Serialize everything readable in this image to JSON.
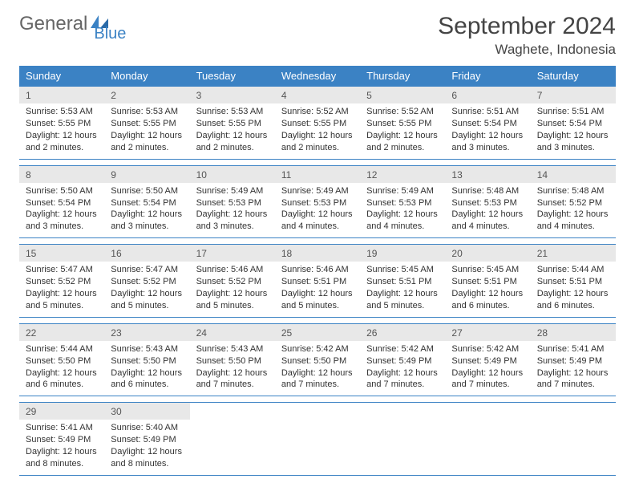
{
  "brand": {
    "general": "General",
    "blue": "Blue"
  },
  "title": "September 2024",
  "location": "Waghete, Indonesia",
  "colors": {
    "header_bg": "#3b82c4",
    "header_text": "#ffffff",
    "daynum_bg": "#e8e8e8",
    "rule": "#3b82c4",
    "brand_blue": "#3b82c4",
    "brand_grey": "#666666",
    "text": "#333333",
    "page_bg": "#ffffff"
  },
  "typography": {
    "title_fontsize": 30,
    "location_fontsize": 17,
    "dayheader_fontsize": 13,
    "daynum_fontsize": 12,
    "body_fontsize": 11
  },
  "day_headers": [
    "Sunday",
    "Monday",
    "Tuesday",
    "Wednesday",
    "Thursday",
    "Friday",
    "Saturday"
  ],
  "labels": {
    "sunrise": "Sunrise: ",
    "sunset": "Sunset: ",
    "daylight": "Daylight: "
  },
  "weeks": [
    [
      {
        "n": "1",
        "sunrise": "5:53 AM",
        "sunset": "5:55 PM",
        "daylight": "12 hours and 2 minutes."
      },
      {
        "n": "2",
        "sunrise": "5:53 AM",
        "sunset": "5:55 PM",
        "daylight": "12 hours and 2 minutes."
      },
      {
        "n": "3",
        "sunrise": "5:53 AM",
        "sunset": "5:55 PM",
        "daylight": "12 hours and 2 minutes."
      },
      {
        "n": "4",
        "sunrise": "5:52 AM",
        "sunset": "5:55 PM",
        "daylight": "12 hours and 2 minutes."
      },
      {
        "n": "5",
        "sunrise": "5:52 AM",
        "sunset": "5:55 PM",
        "daylight": "12 hours and 2 minutes."
      },
      {
        "n": "6",
        "sunrise": "5:51 AM",
        "sunset": "5:54 PM",
        "daylight": "12 hours and 3 minutes."
      },
      {
        "n": "7",
        "sunrise": "5:51 AM",
        "sunset": "5:54 PM",
        "daylight": "12 hours and 3 minutes."
      }
    ],
    [
      {
        "n": "8",
        "sunrise": "5:50 AM",
        "sunset": "5:54 PM",
        "daylight": "12 hours and 3 minutes."
      },
      {
        "n": "9",
        "sunrise": "5:50 AM",
        "sunset": "5:54 PM",
        "daylight": "12 hours and 3 minutes."
      },
      {
        "n": "10",
        "sunrise": "5:49 AM",
        "sunset": "5:53 PM",
        "daylight": "12 hours and 3 minutes."
      },
      {
        "n": "11",
        "sunrise": "5:49 AM",
        "sunset": "5:53 PM",
        "daylight": "12 hours and 4 minutes."
      },
      {
        "n": "12",
        "sunrise": "5:49 AM",
        "sunset": "5:53 PM",
        "daylight": "12 hours and 4 minutes."
      },
      {
        "n": "13",
        "sunrise": "5:48 AM",
        "sunset": "5:53 PM",
        "daylight": "12 hours and 4 minutes."
      },
      {
        "n": "14",
        "sunrise": "5:48 AM",
        "sunset": "5:52 PM",
        "daylight": "12 hours and 4 minutes."
      }
    ],
    [
      {
        "n": "15",
        "sunrise": "5:47 AM",
        "sunset": "5:52 PM",
        "daylight": "12 hours and 5 minutes."
      },
      {
        "n": "16",
        "sunrise": "5:47 AM",
        "sunset": "5:52 PM",
        "daylight": "12 hours and 5 minutes."
      },
      {
        "n": "17",
        "sunrise": "5:46 AM",
        "sunset": "5:52 PM",
        "daylight": "12 hours and 5 minutes."
      },
      {
        "n": "18",
        "sunrise": "5:46 AM",
        "sunset": "5:51 PM",
        "daylight": "12 hours and 5 minutes."
      },
      {
        "n": "19",
        "sunrise": "5:45 AM",
        "sunset": "5:51 PM",
        "daylight": "12 hours and 5 minutes."
      },
      {
        "n": "20",
        "sunrise": "5:45 AM",
        "sunset": "5:51 PM",
        "daylight": "12 hours and 6 minutes."
      },
      {
        "n": "21",
        "sunrise": "5:44 AM",
        "sunset": "5:51 PM",
        "daylight": "12 hours and 6 minutes."
      }
    ],
    [
      {
        "n": "22",
        "sunrise": "5:44 AM",
        "sunset": "5:50 PM",
        "daylight": "12 hours and 6 minutes."
      },
      {
        "n": "23",
        "sunrise": "5:43 AM",
        "sunset": "5:50 PM",
        "daylight": "12 hours and 6 minutes."
      },
      {
        "n": "24",
        "sunrise": "5:43 AM",
        "sunset": "5:50 PM",
        "daylight": "12 hours and 7 minutes."
      },
      {
        "n": "25",
        "sunrise": "5:42 AM",
        "sunset": "5:50 PM",
        "daylight": "12 hours and 7 minutes."
      },
      {
        "n": "26",
        "sunrise": "5:42 AM",
        "sunset": "5:49 PM",
        "daylight": "12 hours and 7 minutes."
      },
      {
        "n": "27",
        "sunrise": "5:42 AM",
        "sunset": "5:49 PM",
        "daylight": "12 hours and 7 minutes."
      },
      {
        "n": "28",
        "sunrise": "5:41 AM",
        "sunset": "5:49 PM",
        "daylight": "12 hours and 7 minutes."
      }
    ],
    [
      {
        "n": "29",
        "sunrise": "5:41 AM",
        "sunset": "5:49 PM",
        "daylight": "12 hours and 8 minutes."
      },
      {
        "n": "30",
        "sunrise": "5:40 AM",
        "sunset": "5:49 PM",
        "daylight": "12 hours and 8 minutes."
      },
      null,
      null,
      null,
      null,
      null
    ]
  ]
}
